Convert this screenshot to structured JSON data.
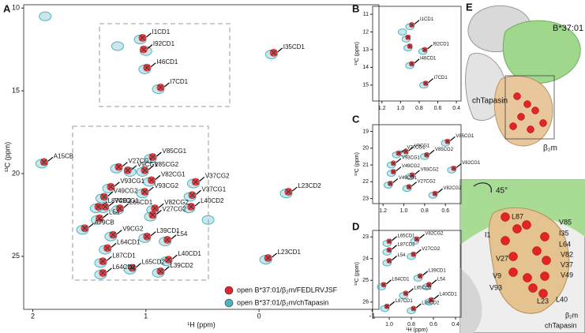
{
  "chart_data": [
    {
      "type": "scatter",
      "panel": "A",
      "xlabel": "¹H (ppm)",
      "ylabel": "¹³C (ppm)",
      "xlim": [
        2.08,
        -1.06
      ],
      "ylim": [
        9.8,
        28.2
      ],
      "xticks": [
        2,
        1,
        0,
        -1
      ],
      "yticks": [
        10,
        15,
        20,
        25
      ],
      "legend": "lower right",
      "series": [
        {
          "name": "open B*37:01/β₂m/FEDLRVJSF",
          "color": "#e0262b",
          "style": "filled-cross",
          "x": [
            1.03,
            1.02,
            0.99,
            0.87,
            -0.13,
            1.9,
            -0.26,
            0.94,
            1.24,
            1.16,
            1.01,
            0.95,
            0.56,
            1.31,
            0.59,
            1.37,
            1.01,
            1.42,
            1.36,
            1.23,
            0.92,
            0.6,
            0.94,
            1.41,
            1.54,
            0.99,
            1.29,
            0.81,
            -0.08,
            1.34,
            1.38,
            0.8,
            1.12,
            0.87,
            1.38
          ],
          "y": [
            11.8,
            12.5,
            13.6,
            14.8,
            12.7,
            19.3,
            21.1,
            19.0,
            19.6,
            19.8,
            19.8,
            20.4,
            20.5,
            20.8,
            21.3,
            21.4,
            21.1,
            22.0,
            22.0,
            22.1,
            22.1,
            22.0,
            22.5,
            22.7,
            23.3,
            23.8,
            23.7,
            24.0,
            25.1,
            24.5,
            25.3,
            25.2,
            25.7,
            25.9,
            26.0
          ],
          "labels": [
            "I1CD1",
            "I92CD1",
            "I46CD1",
            "I7CD1",
            "I35CD1",
            "A15CB",
            "L23CD2",
            "V85CG1",
            "V27CG1",
            "V9CG1",
            "V85CG2",
            "V82CG1",
            "V37CG2",
            "V93CG1",
            "V37CG1",
            "V49CG2",
            "V93CG2",
            "L87CD2",
            "V49CG1",
            "L65CD1",
            "V82CG2",
            "L40CD2",
            "V27CG2",
            "L54",
            "A79CB",
            "L39CD1",
            "V9CG2",
            "L54",
            "L23CD1",
            "L64CD1",
            "L87CD1",
            "L40CD1",
            "L65CD2",
            "L39CD2",
            "L64CD2"
          ]
        },
        {
          "name": "open B*37:01/β₂m/chTapasin",
          "color": "#4fb3bf",
          "style": "contour",
          "x": [
            1.05,
            1.0,
            1.01,
            0.89,
            -0.11,
            1.92,
            -0.24,
            0.96,
            1.26,
            1.14,
            1.03,
            0.97,
            0.58,
            1.33,
            0.61,
            1.39,
            1.03,
            1.44,
            1.38,
            1.25,
            0.94,
            0.62,
            0.96,
            1.43,
            1.56,
            1.01,
            1.31,
            0.83,
            -0.06,
            1.36,
            1.4,
            0.82,
            1.14,
            0.89,
            1.4,
            1.89,
            1.25,
            0.45
          ],
          "y": [
            11.9,
            12.6,
            13.7,
            14.9,
            12.8,
            19.4,
            21.2,
            19.1,
            19.7,
            19.9,
            19.9,
            20.5,
            20.6,
            20.9,
            21.4,
            21.5,
            21.2,
            22.1,
            22.1,
            22.2,
            22.2,
            22.1,
            22.6,
            22.8,
            23.4,
            23.9,
            23.8,
            24.1,
            25.2,
            24.6,
            25.4,
            25.3,
            25.8,
            26.0,
            26.1,
            10.5,
            12.3,
            22.8
          ]
        }
      ]
    },
    {
      "type": "scatter",
      "panel": "B",
      "ylabel": "¹³C (ppm)",
      "xlim": [
        1.3,
        0.35
      ],
      "ylim": [
        10.55,
        15.9
      ],
      "xticks": [
        1.2,
        {
          "value": 1,
          "label": "1.0"
        },
        0.8,
        0.6,
        0.4
      ],
      "yticks": [
        11,
        12,
        13,
        14,
        15
      ],
      "series": [
        {
          "color": "#e0262b",
          "style": "filled-cross",
          "x": [
            0.88,
            0.74,
            0.88,
            0.73,
            0.92,
            0.9
          ],
          "y": [
            11.6,
            13.0,
            13.8,
            14.9,
            12.3,
            12.8
          ],
          "labels": [
            "I1CD1",
            "I92CD1",
            "I46CD1",
            "I7CD1",
            null,
            null
          ]
        },
        {
          "color": "#4fb3bf",
          "style": "contour",
          "x": [
            0.9,
            0.76,
            0.9,
            0.75,
            0.94,
            0.92,
            0.98
          ],
          "y": [
            11.7,
            13.1,
            13.9,
            15.0,
            12.4,
            12.9,
            12.0
          ]
        }
      ]
    },
    {
      "type": "scatter",
      "panel": "C",
      "ylabel": "¹³C (ppm)",
      "xlim": [
        1.3,
        0.45
      ],
      "ylim": [
        18.6,
        23.3
      ],
      "xticks": [
        1.2,
        {
          "value": 1,
          "label": "1.0"
        },
        0.8,
        0.6
      ],
      "yticks": [
        19,
        20,
        21,
        22,
        23
      ],
      "series": [
        {
          "color": "#e0262b",
          "style": "filled-cross",
          "x": [
            0.58,
            1.05,
            0.98,
            0.78,
            1.1,
            0.52,
            1.1,
            0.92,
            1.13,
            0.95,
            0.7
          ],
          "y": [
            19.6,
            20.3,
            20.2,
            20.4,
            20.9,
            21.2,
            21.4,
            21.6,
            22.1,
            22.3,
            22.7
          ],
          "labels": [
            "V85CG1",
            "V27CG1",
            "V9CG1",
            "V85CG2",
            "V93CG1",
            "V82CG1",
            "V49CG2",
            "V93CG2",
            "V49CG1",
            "V27CG2",
            "V82CG2"
          ]
        },
        {
          "color": "#4fb3bf",
          "style": "contour",
          "x": [
            0.6,
            1.07,
            1.0,
            0.8,
            1.12,
            0.54,
            1.12,
            0.94,
            1.15,
            0.97,
            0.72
          ],
          "y": [
            19.7,
            20.4,
            20.3,
            20.5,
            21.0,
            21.3,
            21.5,
            21.7,
            22.2,
            22.4,
            22.8
          ]
        }
      ]
    },
    {
      "type": "scatter",
      "panel": "D",
      "xlabel": "¹H (ppm)",
      "ylabel": "¹³C (ppm)",
      "xlim": [
        1.15,
        0.35
      ],
      "ylim": [
        22.7,
        26.7
      ],
      "xticks": [
        {
          "value": 1,
          "label": "1.0"
        },
        0.8,
        0.6,
        0.4
      ],
      "yticks": [
        23,
        24,
        25,
        26
      ],
      "series": [
        {
          "color": "#e0262b",
          "style": "filled-cross",
          "x": [
            1.0,
            0.75,
            1.0,
            0.78,
            1.0,
            0.72,
            1.05,
            0.64,
            0.85,
            0.62,
            1.02,
            0.78
          ],
          "y": [
            23.2,
            23.1,
            23.6,
            23.8,
            24.1,
            24.8,
            25.2,
            25.2,
            25.6,
            25.9,
            26.2,
            26.3
          ],
          "labels": [
            "L65CD1",
            "V82CG2",
            "L87CD2",
            "V27CG2",
            "L54",
            "L39CD1",
            "L64CD1",
            "L54",
            "L65CD2",
            "L40CD1",
            "L87CD1",
            "L39CD2"
          ]
        },
        {
          "color": "#4fb3bf",
          "style": "contour",
          "x": [
            1.02,
            0.77,
            1.02,
            0.8,
            1.02,
            0.74,
            1.07,
            0.66,
            0.87,
            0.64,
            1.04,
            0.8
          ],
          "y": [
            23.3,
            23.2,
            23.7,
            23.9,
            24.2,
            24.9,
            25.3,
            25.3,
            25.7,
            26.0,
            26.3,
            26.4
          ]
        }
      ]
    }
  ],
  "panel_e": {
    "label": "E",
    "chain_heavy": "B*37:01",
    "chain_tapasin": "chTapasin",
    "chain_b2m": "β₂m",
    "rotation": "45°",
    "zoom": {
      "residues": [
        "L87",
        "V85",
        "I35",
        "L64",
        "I1",
        "V82",
        "V27",
        "V37",
        "V9",
        "V49",
        "V93",
        "L23",
        "L40"
      ],
      "chain_b2m": "β₂m",
      "chain_tapasin": "chTapasin"
    }
  }
}
